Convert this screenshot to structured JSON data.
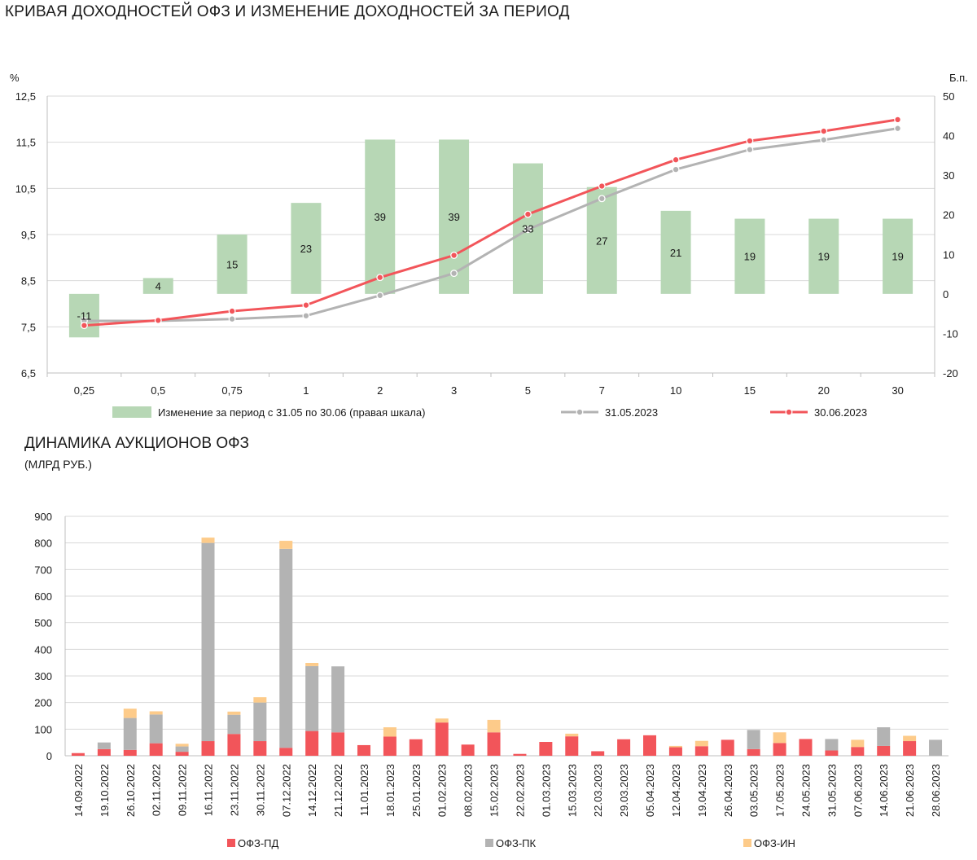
{
  "yield_chart": {
    "title": "КРИВАЯ ДОХОДНОСТЕЙ ОФЗ И ИЗМЕНЕНИЕ ДОХОДНОСТЕЙ ЗА ПЕРИОД",
    "colors": {
      "bar": "#b7d7b5",
      "old": "#b3b3b3",
      "new": "#f2555a",
      "grid": "#d9d9d9"
    },
    "legend": {
      "bars": "Изменение за период с 31.05 по 30.06 (правая шкала)",
      "old": "31.05.2023",
      "new": "30.06.2023"
    }
  },
  "auction_chart": {
    "title": "ДИНАМИКА АУКЦИОНОВ ОФЗ",
    "subtitle": "(МЛРД РУБ.)",
    "colors": {
      "pd": "#f2555a",
      "pk": "#b3b3b3",
      "in": "#fdcb8a",
      "grid": "#d9d9d9"
    }
  },
  "chart_data": [
    {
      "type": "bar+line",
      "title": "КРИВАЯ ДОХОДНОСТЕЙ ОФЗ И ИЗМЕНЕНИЕ ДОХОДНОСТЕЙ ЗА ПЕРИОД",
      "categories": [
        "0,25",
        "0,5",
        "0,75",
        "1",
        "2",
        "3",
        "5",
        "7",
        "10",
        "15",
        "20",
        "30"
      ],
      "ylabel_left": "%",
      "ylabel_right": "Б.п.",
      "ylim_left": [
        6.5,
        12.5
      ],
      "yticks_left": [
        "6,5",
        "7,5",
        "8,5",
        "9,5",
        "10,5",
        "11,5",
        "12,5"
      ],
      "ylim_right": [
        -20,
        50
      ],
      "yticks_right": [
        "-20",
        "-10",
        "0",
        "10",
        "20",
        "30",
        "40",
        "50"
      ],
      "series": [
        {
          "name": "Изменение за период с 31.05 по 30.06 (правая шкала)",
          "kind": "bar",
          "axis": "right",
          "values": [
            -11,
            4,
            15,
            23,
            39,
            39,
            33,
            27,
            21,
            19,
            19,
            19
          ]
        },
        {
          "name": "31.05.2023",
          "kind": "line",
          "axis": "left",
          "values": [
            7.63,
            7.63,
            7.67,
            7.74,
            8.18,
            8.66,
            9.61,
            10.28,
            10.91,
            11.34,
            11.55,
            11.8
          ]
        },
        {
          "name": "30.06.2023",
          "kind": "line",
          "axis": "left",
          "values": [
            7.53,
            7.64,
            7.84,
            7.97,
            8.57,
            9.05,
            9.94,
            10.55,
            11.12,
            11.53,
            11.74,
            11.99
          ]
        }
      ]
    },
    {
      "type": "stacked-bar",
      "title": "ДИНАМИКА АУКЦИОНОВ ОФЗ",
      "subtitle": "(МЛРД РУБ.)",
      "ylim": [
        0,
        900
      ],
      "yticks": [
        "0",
        "100",
        "200",
        "300",
        "400",
        "500",
        "600",
        "700",
        "800",
        "900"
      ],
      "categories": [
        "14.09.2022",
        "19.10.2022",
        "26.10.2022",
        "02.11.2022",
        "09.11.2022",
        "16.11.2022",
        "23.11.2022",
        "30.11.2022",
        "07.12.2022",
        "14.12.2022",
        "21.12.2022",
        "11.01.2023",
        "18.01.2023",
        "25.01.2023",
        "01.02.2023",
        "08.02.2023",
        "15.02.2023",
        "22.02.2023",
        "01.03.2023",
        "15.03.2023",
        "22.03.2023",
        "29.03.2023",
        "05.04.2023",
        "12.04.2023",
        "19.04.2023",
        "26.04.2023",
        "03.05.2023",
        "17.05.2023",
        "24.05.2023",
        "31.05.2023",
        "07.06.2023",
        "14.06.2023",
        "21.06.2023",
        "28.06.2023"
      ],
      "series": [
        {
          "name": "ОФЗ-ПД",
          "values": [
            10,
            25,
            22,
            47,
            15,
            55,
            82,
            55,
            30,
            93,
            88,
            40,
            72,
            62,
            125,
            42,
            88,
            7,
            52,
            73,
            17,
            62,
            77,
            32,
            36,
            60,
            25,
            48,
            63,
            20,
            33,
            37,
            55,
            0
          ]
        },
        {
          "name": "ОФЗ-ПК",
          "values": [
            0,
            25,
            120,
            108,
            20,
            745,
            72,
            145,
            748,
            244,
            248,
            0,
            0,
            0,
            0,
            0,
            0,
            0,
            0,
            0,
            0,
            0,
            0,
            0,
            0,
            0,
            72,
            0,
            0,
            43,
            0,
            70,
            0,
            60
          ]
        },
        {
          "name": "ОФЗ-ИН",
          "values": [
            0,
            0,
            35,
            12,
            10,
            20,
            12,
            20,
            30,
            12,
            0,
            0,
            35,
            0,
            15,
            0,
            47,
            0,
            0,
            10,
            0,
            0,
            0,
            5,
            20,
            0,
            0,
            40,
            0,
            0,
            27,
            0,
            20,
            0
          ]
        }
      ]
    }
  ]
}
